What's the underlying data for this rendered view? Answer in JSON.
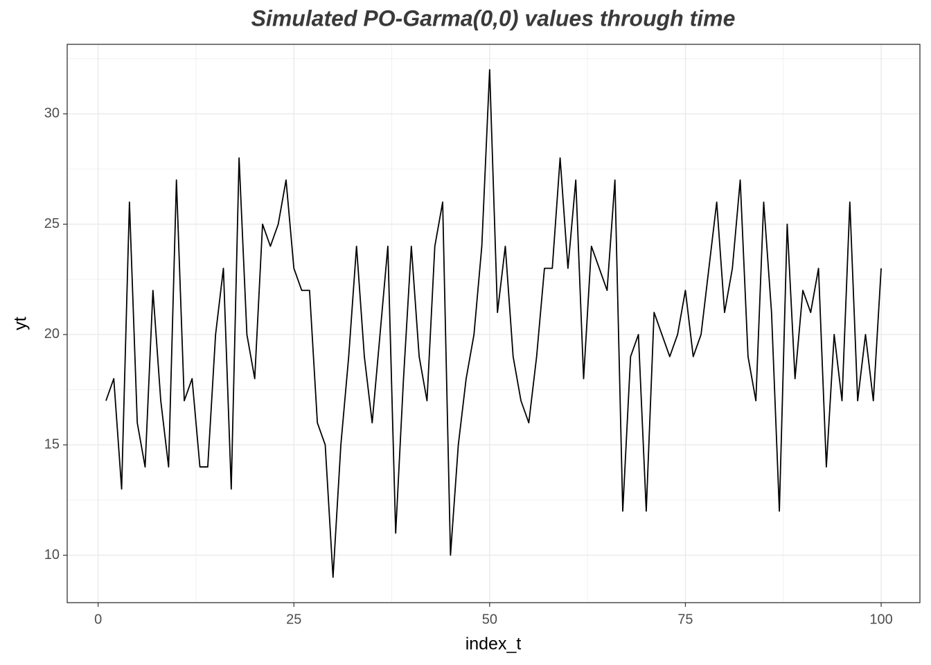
{
  "chart_data": {
    "type": "line",
    "title": "Simulated PO-Garma(0,0) values through time",
    "x_label": "index_t",
    "y_label": "yt",
    "x": [
      1,
      2,
      3,
      4,
      5,
      6,
      7,
      8,
      9,
      10,
      11,
      12,
      13,
      14,
      15,
      16,
      17,
      18,
      19,
      20,
      21,
      22,
      23,
      24,
      25,
      26,
      27,
      28,
      29,
      30,
      31,
      32,
      33,
      34,
      35,
      36,
      37,
      38,
      39,
      40,
      41,
      42,
      43,
      44,
      45,
      46,
      47,
      48,
      49,
      50,
      51,
      52,
      53,
      54,
      55,
      56,
      57,
      58,
      59,
      60,
      61,
      62,
      63,
      64,
      65,
      66,
      67,
      68,
      69,
      70,
      71,
      72,
      73,
      74,
      75,
      76,
      77,
      78,
      79,
      80,
      81,
      82,
      83,
      84,
      85,
      86,
      87,
      88,
      89,
      90,
      91,
      92,
      93,
      94,
      95,
      96,
      97,
      98,
      99,
      100
    ],
    "series": [
      {
        "name": "yt",
        "color": "#000000",
        "values": [
          17,
          18,
          13,
          26,
          16,
          14,
          22,
          17,
          14,
          27,
          17,
          18,
          14,
          14,
          20,
          23,
          13,
          28,
          20,
          18,
          25,
          24,
          25,
          27,
          23,
          22,
          22,
          16,
          15,
          9,
          15,
          19,
          24,
          19,
          16,
          20,
          24,
          11,
          18,
          24,
          19,
          17,
          24,
          26,
          10,
          15,
          18,
          20,
          24,
          32,
          21,
          24,
          19,
          17,
          16,
          19,
          23,
          23,
          28,
          23,
          27,
          18,
          24,
          23,
          22,
          27,
          12,
          19,
          20,
          12,
          21,
          20,
          19,
          20,
          22,
          19,
          20,
          23,
          26,
          21,
          23,
          27,
          19,
          17,
          26,
          21,
          12,
          25,
          18,
          22,
          21,
          23,
          14,
          20,
          17,
          26,
          17,
          20,
          17,
          23
        ]
      }
    ],
    "xlim": [
      -3.95,
      104.95
    ],
    "xticks": [
      0,
      25,
      50,
      75,
      100
    ],
    "ylim": [
      7.85,
      33.15
    ],
    "yticks": [
      10,
      15,
      20,
      25,
      30
    ],
    "grid": true
  }
}
